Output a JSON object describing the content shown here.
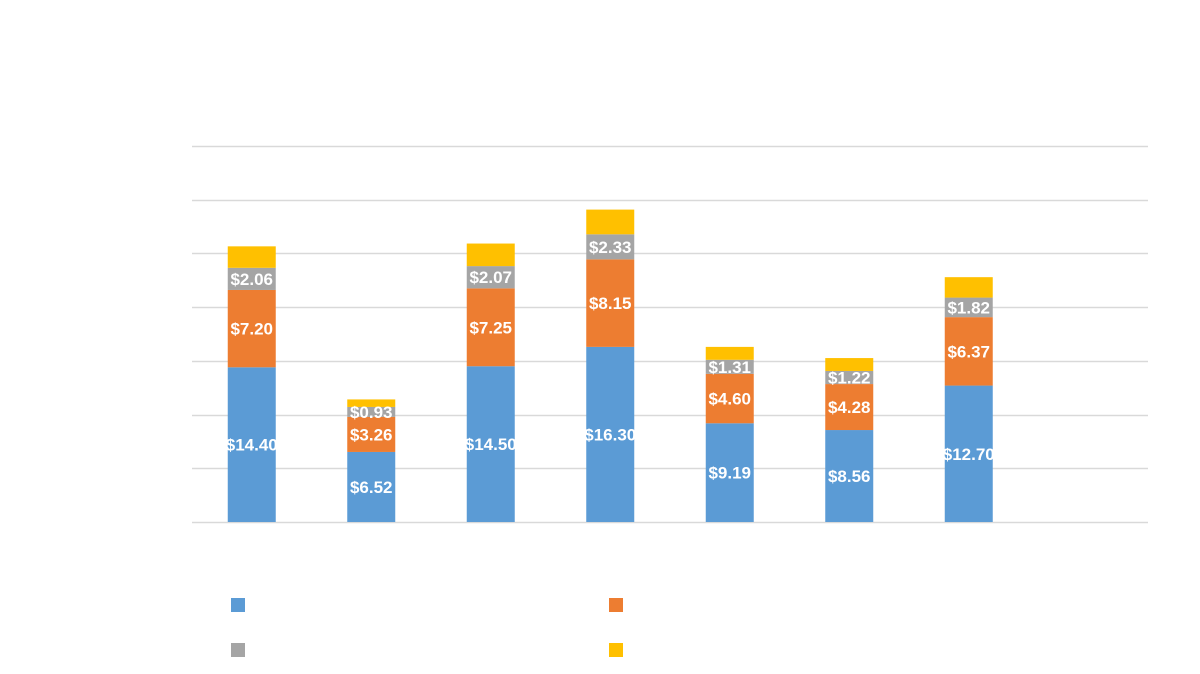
{
  "chart_data": {
    "type": "bar",
    "stacked": true,
    "title": "",
    "xlabel": "",
    "ylabel": "",
    "ylim": [
      0,
      35
    ],
    "grid": true,
    "legend_position": "bottom",
    "categories": [
      "",
      "",
      "",
      "",
      "",
      "",
      "",
      ""
    ],
    "series": [
      {
        "color": "#5B9BD5",
        "values": [
          14.4,
          6.52,
          14.5,
          16.3,
          9.19,
          8.56,
          12.7,
          null
        ],
        "labels": [
          "$14.40",
          "$6.52",
          "$14.50",
          "$16.30",
          "$9.19",
          "$8.56",
          "$12.70",
          ""
        ]
      },
      {
        "color": "#ED7D31",
        "values": [
          7.2,
          3.26,
          7.25,
          8.15,
          4.6,
          4.28,
          6.37,
          null
        ],
        "labels": [
          "$7.20",
          "$3.26",
          "$7.25",
          "$8.15",
          "$4.60",
          "$4.28",
          "$6.37",
          ""
        ]
      },
      {
        "color": "#A5A5A5",
        "values": [
          2.06,
          0.93,
          2.07,
          2.33,
          1.31,
          1.22,
          1.82,
          null
        ],
        "labels": [
          "$2.06",
          "$0.93",
          "$2.07",
          "$2.33",
          "$1.31",
          "$1.22",
          "$1.82",
          ""
        ]
      },
      {
        "color": "#FFC000",
        "values": [
          2.0,
          0.7,
          2.1,
          2.3,
          1.2,
          1.2,
          1.9,
          null
        ],
        "labels": [
          "",
          "",
          "",
          "",
          "",
          "",
          "",
          ""
        ]
      }
    ]
  }
}
